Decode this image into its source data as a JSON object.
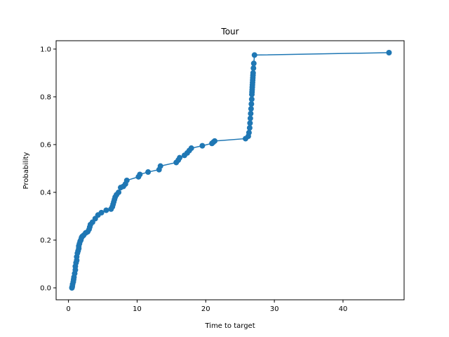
{
  "chart_data": {
    "type": "line",
    "title": "Tour",
    "xlabel": "Time to target",
    "ylabel": "Probability",
    "xlim": [
      -1.8,
      48.9
    ],
    "ylim": [
      -0.05,
      1.035
    ],
    "xticks": [
      0,
      10,
      20,
      30,
      40
    ],
    "xtick_labels": [
      "0",
      "10",
      "20",
      "30",
      "40"
    ],
    "yticks": [
      0.0,
      0.2,
      0.4,
      0.6,
      0.8,
      1.0
    ],
    "ytick_labels": [
      "0.0",
      "0.2",
      "0.4",
      "0.6",
      "0.8",
      "1.0"
    ],
    "grid": false,
    "legend": "none",
    "series_color": "#1f77b4",
    "series": [
      {
        "x": [
          0.5,
          0.55,
          0.6,
          0.7,
          0.75,
          0.8,
          0.9,
          1.0,
          1.0,
          1.1,
          1.2,
          1.2,
          1.3,
          1.4,
          1.5,
          1.5,
          1.6,
          1.7,
          1.8,
          1.9,
          2.0,
          2.2,
          2.5,
          2.8,
          3.0,
          3.1,
          3.2,
          3.5,
          3.9,
          4.3,
          4.8,
          5.5,
          6.2,
          6.4,
          6.5,
          6.6,
          6.7,
          6.8,
          7.0,
          7.3,
          7.6,
          8.0,
          8.3,
          8.5,
          10.2,
          10.4,
          11.6,
          13.2,
          13.4,
          15.7,
          16.0,
          16.2,
          16.9,
          17.3,
          17.6,
          17.9,
          19.5,
          20.9,
          21.1,
          21.3,
          25.8,
          26.2,
          26.3,
          26.4,
          26.45,
          26.5,
          26.55,
          26.6,
          26.65,
          26.7,
          26.72,
          26.74,
          26.76,
          26.78,
          26.8,
          26.82,
          26.84,
          26.86,
          26.88,
          26.9,
          26.95,
          27.0,
          27.1,
          46.7
        ],
        "y": [
          0.0,
          0.005,
          0.015,
          0.025,
          0.035,
          0.045,
          0.06,
          0.075,
          0.09,
          0.105,
          0.115,
          0.13,
          0.145,
          0.155,
          0.165,
          0.175,
          0.185,
          0.195,
          0.2,
          0.21,
          0.215,
          0.22,
          0.23,
          0.235,
          0.245,
          0.255,
          0.265,
          0.275,
          0.29,
          0.305,
          0.315,
          0.325,
          0.33,
          0.34,
          0.35,
          0.36,
          0.37,
          0.38,
          0.39,
          0.4,
          0.42,
          0.425,
          0.435,
          0.45,
          0.465,
          0.475,
          0.485,
          0.495,
          0.51,
          0.525,
          0.535,
          0.545,
          0.555,
          0.565,
          0.575,
          0.585,
          0.595,
          0.605,
          0.61,
          0.615,
          0.625,
          0.635,
          0.65,
          0.67,
          0.69,
          0.71,
          0.73,
          0.75,
          0.77,
          0.79,
          0.81,
          0.82,
          0.83,
          0.84,
          0.85,
          0.86,
          0.87,
          0.88,
          0.89,
          0.9,
          0.92,
          0.94,
          0.975,
          0.985
        ]
      }
    ]
  }
}
